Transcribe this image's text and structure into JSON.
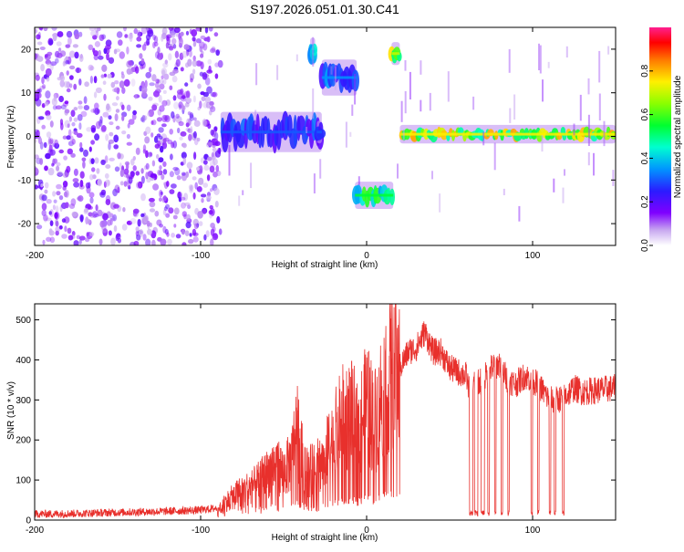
{
  "title": "S197.2026.051.01.30.C41",
  "chart_data": [
    {
      "type": "heatmap",
      "xlabel": "Height of straight line (km)",
      "ylabel": "Frequency (Hz)",
      "xlim": [
        -200,
        150
      ],
      "ylim": [
        -25,
        25
      ],
      "xticks": [
        -200,
        -100,
        0,
        100
      ],
      "yticks": [
        -20,
        -10,
        0,
        10,
        20
      ],
      "grid": false,
      "colorbar": {
        "label": "Normalized spectral amplitude",
        "range": [
          0,
          1
        ],
        "ticks": [
          0.0,
          0.2,
          0.4,
          0.6,
          0.8
        ],
        "tick_labels": [
          "0.0",
          "0.2",
          "0.4",
          "0.6",
          "0.8"
        ]
      },
      "features": [
        {
          "x_start": -200,
          "x_end": -88,
          "y_min": -25,
          "y_max": 25,
          "amplitude": 0.1,
          "kind": "noise"
        },
        {
          "x_start": -88,
          "x_end": -27,
          "y_min": -3,
          "y_max": 5,
          "amplitude": 0.3,
          "kind": "band"
        },
        {
          "x_start": -34,
          "x_end": -31,
          "y_min": 17,
          "y_max": 22,
          "amplitude": 0.4,
          "kind": "band"
        },
        {
          "x_start": -30,
          "x_end": -27,
          "y_min": -1,
          "y_max": 3,
          "amplitude": 0.3,
          "kind": "band"
        },
        {
          "x_start": -27,
          "x_end": -6,
          "y_min": 10,
          "y_max": 17,
          "amplitude": 0.35,
          "kind": "band"
        },
        {
          "x_start": -7,
          "x_end": 16,
          "y_min": -16,
          "y_max": -11,
          "amplitude": 0.55,
          "kind": "band"
        },
        {
          "x_start": 15,
          "x_end": 20,
          "y_min": 17,
          "y_max": 21,
          "amplitude": 0.7,
          "kind": "band"
        },
        {
          "x_start": 20,
          "x_end": 150,
          "y_min": -1,
          "y_max": 2,
          "amplitude": 0.75,
          "kind": "band"
        }
      ]
    },
    {
      "type": "line",
      "xlabel": "Height of straight line (km)",
      "ylabel": "SNR (10 * v/v)",
      "xlim": [
        -200,
        150
      ],
      "ylim": [
        0,
        540
      ],
      "xticks": [
        -200,
        -100,
        0,
        100
      ],
      "yticks": [
        0,
        100,
        200,
        300,
        400,
        500
      ],
      "grid": false,
      "color": "#e8302c",
      "series": [
        {
          "x": [
            -200,
            -180,
            -160,
            -140,
            -120,
            -100,
            -90,
            -85,
            -80,
            -75,
            -70,
            -65,
            -60,
            -55,
            -50,
            -45,
            -42,
            -40,
            -35,
            -30,
            -25,
            -20,
            -15,
            -10,
            -5,
            0,
            5,
            10,
            15,
            20,
            25,
            30,
            35,
            40,
            45,
            50,
            55,
            60,
            62,
            65,
            70,
            75,
            80,
            85,
            90,
            95,
            100,
            105,
            110,
            115,
            120,
            125,
            130,
            140,
            150
          ],
          "y": [
            15,
            16,
            18,
            20,
            22,
            25,
            30,
            45,
            60,
            75,
            80,
            95,
            115,
            140,
            120,
            150,
            250,
            170,
            120,
            130,
            160,
            200,
            250,
            270,
            230,
            290,
            250,
            330,
            360,
            380,
            420,
            430,
            470,
            420,
            420,
            380,
            370,
            360,
            320,
            340,
            350,
            380,
            390,
            350,
            340,
            360,
            350,
            330,
            300,
            300,
            310,
            330,
            320,
            325,
            330
          ]
        }
      ],
      "dropouts": [
        {
          "x_start": 62,
          "x_end": 64
        },
        {
          "x_start": 65,
          "x_end": 67
        },
        {
          "x_start": 69,
          "x_end": 71
        },
        {
          "x_start": 73,
          "x_end": 74
        },
        {
          "x_start": 77,
          "x_end": 78
        },
        {
          "x_start": 81,
          "x_end": 82
        },
        {
          "x_start": 85,
          "x_end": 86
        },
        {
          "x_start": 99,
          "x_end": 100
        },
        {
          "x_start": 103,
          "x_end": 104
        },
        {
          "x_start": 110,
          "x_end": 111
        },
        {
          "x_start": 113,
          "x_end": 114
        },
        {
          "x_start": 118,
          "x_end": 119
        }
      ]
    }
  ]
}
